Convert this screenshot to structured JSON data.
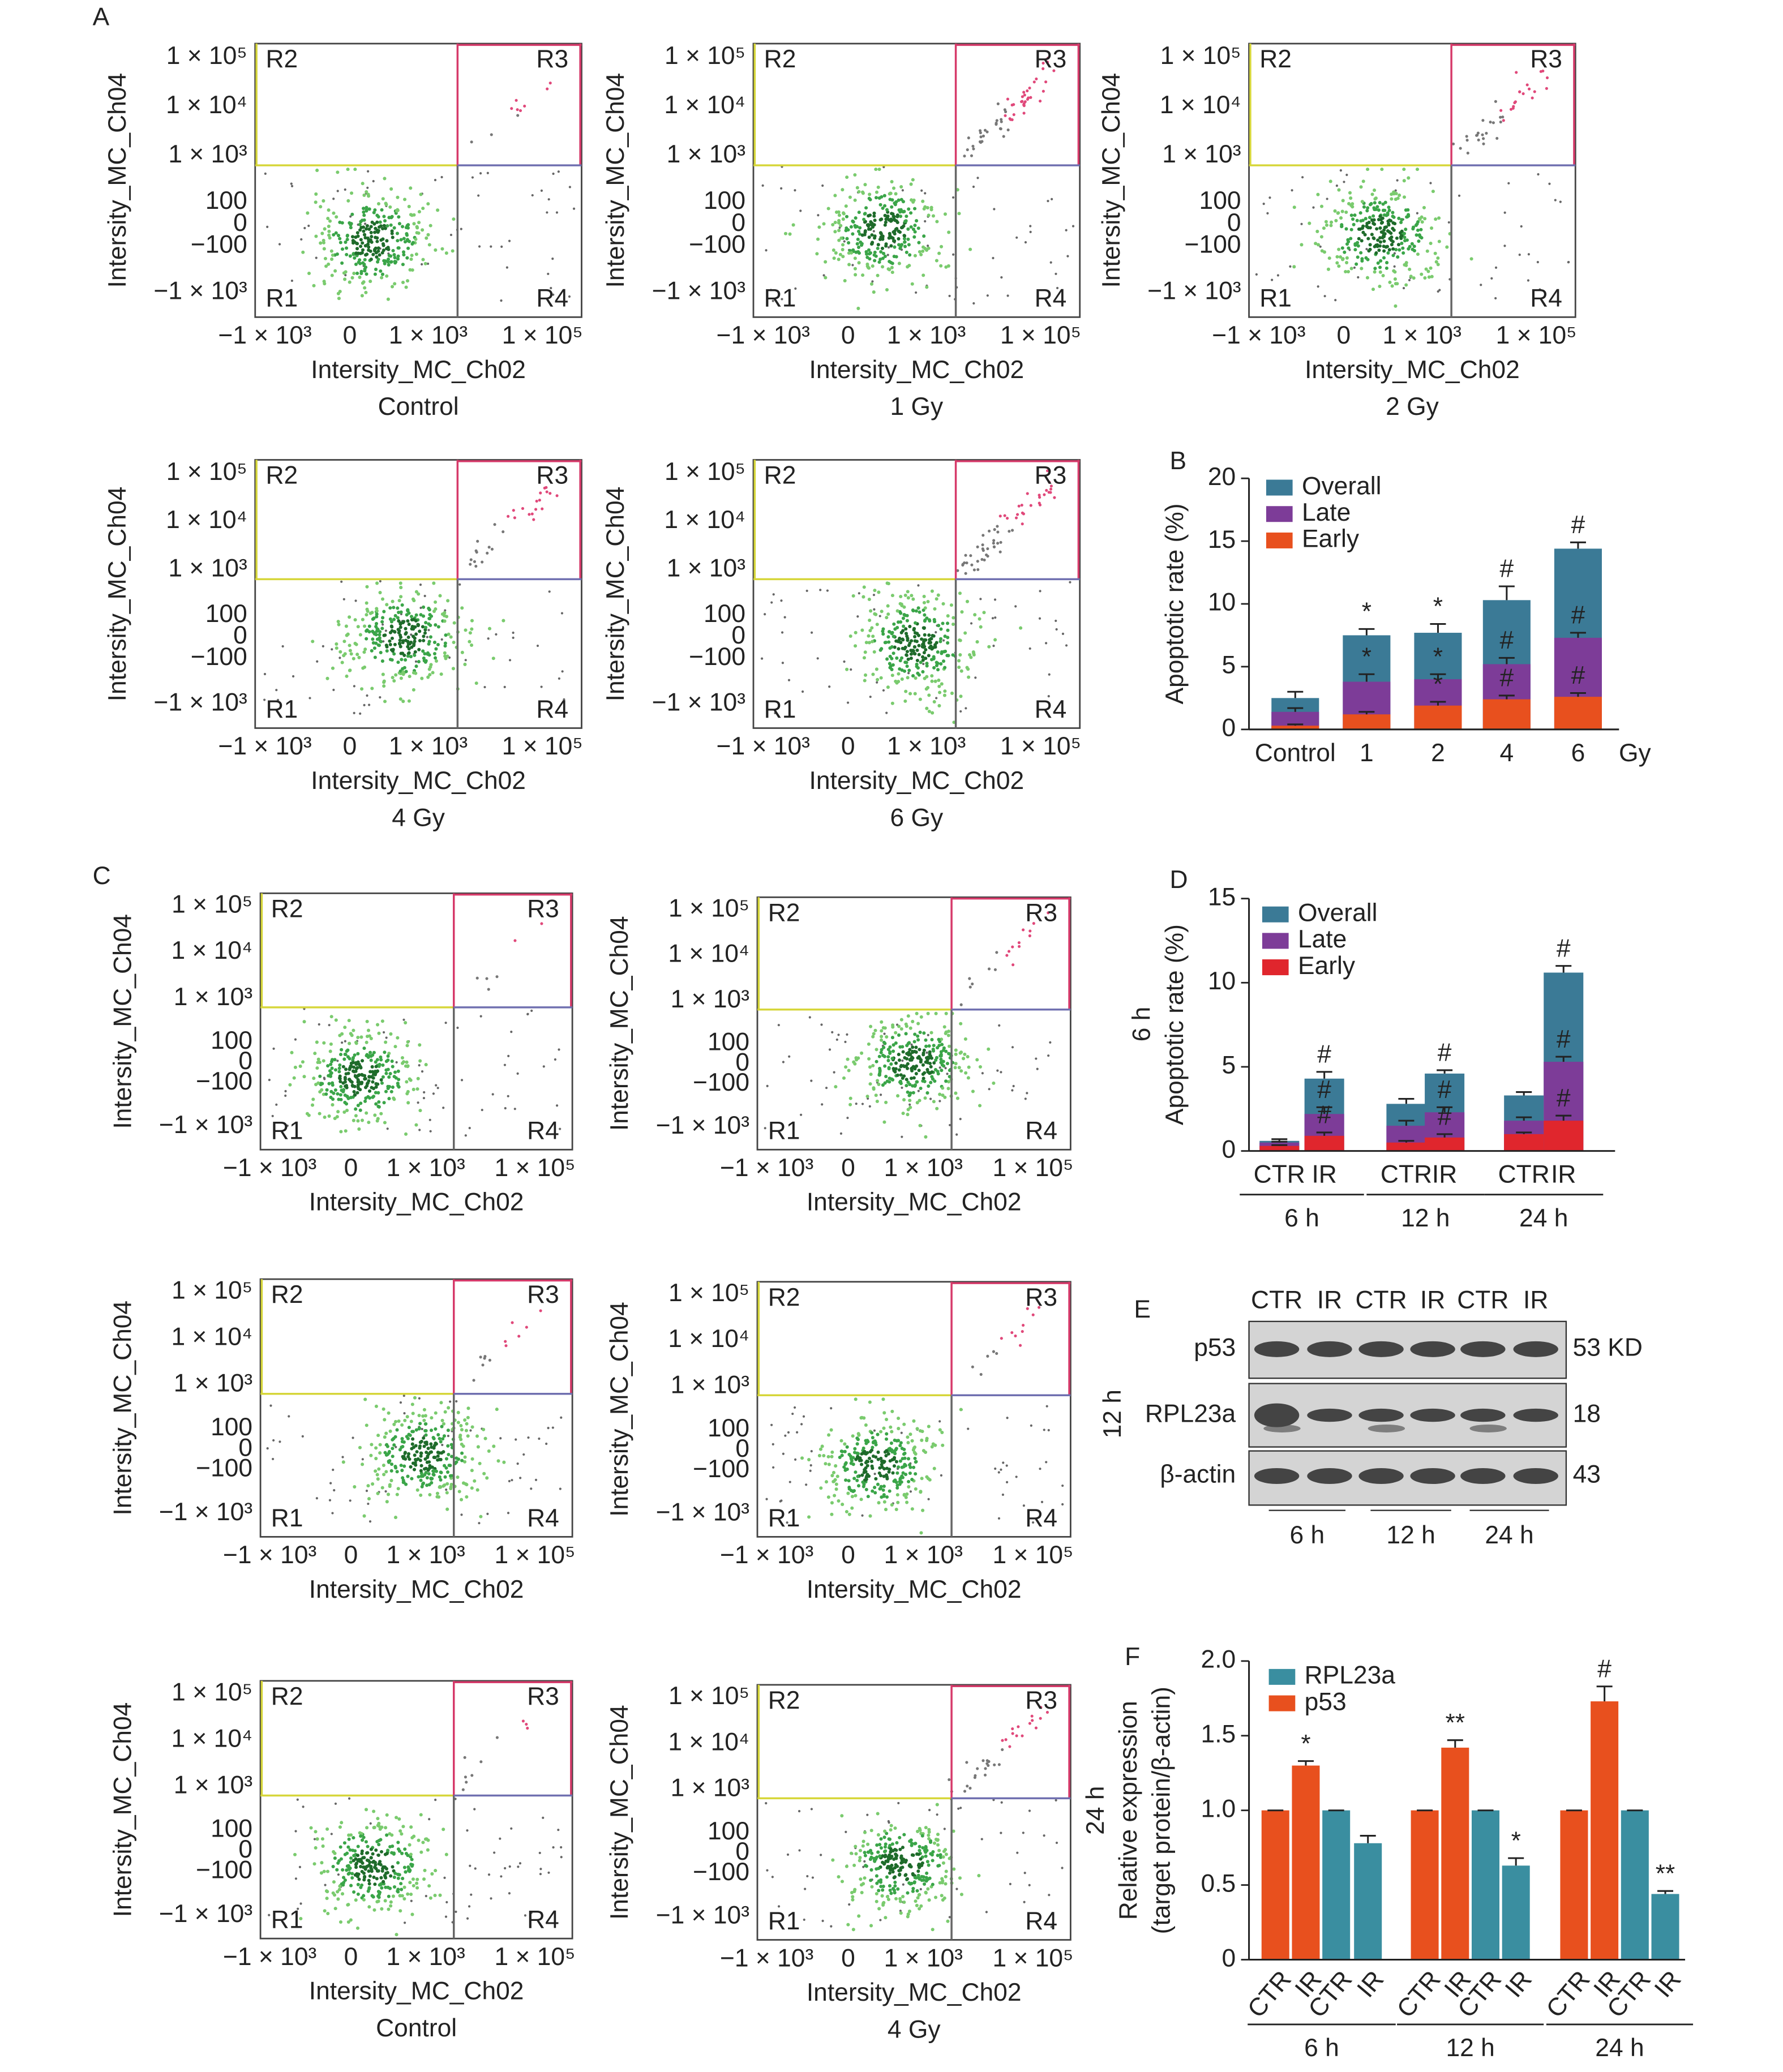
{
  "flow_plot": {
    "y_axis_title": "Intersity_MC_Ch04",
    "x_axis_title": "Intersity_MC_Ch02",
    "yticks": [
      "1 × 10⁵",
      "1 × 10⁴",
      "1 × 10³",
      "100",
      "0",
      "−100",
      "−1 × 10³"
    ],
    "xticks": [
      "−1 × 10³",
      "0",
      "1 × 10³",
      "1 × 10⁵"
    ],
    "regions": [
      "R1",
      "R2",
      "R3",
      "R4"
    ]
  },
  "panel_a": {
    "panel_label": "A",
    "captions": [
      "Control",
      "1 Gy",
      "2 Gy",
      "4 Gy",
      "6 Gy"
    ]
  },
  "panel_c": {
    "panel_label": "C",
    "row_labels": [
      "6 h",
      "12 h",
      "24 h"
    ],
    "captions": [
      "Control",
      "4 Gy"
    ]
  },
  "western_blot": {
    "panel_label": "E",
    "lanes": [
      "CTR",
      "IR",
      "CTR",
      "IR",
      "CTR",
      "IR"
    ],
    "proteins": [
      "p53",
      "RPL23a",
      "β-actin"
    ],
    "sizes": [
      "53 KD",
      "18",
      "43"
    ],
    "groups": [
      "6 h",
      "12 h",
      "24 h"
    ]
  },
  "chart_data": [
    {
      "type": "bar",
      "panel_label": "B",
      "ylabel": "Apoptotic rate (%)",
      "xlabel": "Gy",
      "categories": [
        "Control",
        "1",
        "2",
        "4",
        "6"
      ],
      "ylim": [
        0,
        20
      ],
      "yticks": [
        0,
        5,
        10,
        15,
        20
      ],
      "legend": "top-left",
      "series": [
        {
          "name": "Overall",
          "color": "#3b7a96",
          "values": [
            2.5,
            7.5,
            7.7,
            10.3,
            14.4
          ],
          "errors": [
            0.5,
            0.5,
            0.7,
            1.1,
            0.5
          ],
          "annotations": [
            null,
            "*",
            "*",
            "#",
            "#"
          ]
        },
        {
          "name": "Late",
          "color": "#7d3c98",
          "values": [
            1.4,
            3.8,
            4.0,
            5.2,
            7.3
          ],
          "errors": [
            0.3,
            0.6,
            0.4,
            0.5,
            0.4
          ],
          "annotations": [
            null,
            "*",
            "*",
            "#",
            "#"
          ]
        },
        {
          "name": "Early",
          "color": "#e8501e",
          "values": [
            0.3,
            1.2,
            1.9,
            2.4,
            2.6
          ],
          "errors": [
            0.1,
            0.2,
            0.3,
            0.3,
            0.3
          ],
          "annotations": [
            null,
            null,
            "*",
            "#",
            "#"
          ]
        }
      ]
    },
    {
      "type": "bar",
      "panel_label": "D",
      "ylabel": "Apoptotic rate (%)",
      "categories": [
        "CTR",
        "IR",
        "CTR",
        "IR",
        "CTR",
        "IR"
      ],
      "groups": [
        "6 h",
        "12 h",
        "24 h"
      ],
      "ylim": [
        0,
        15
      ],
      "yticks": [
        0,
        5,
        10,
        15
      ],
      "legend": "top-left",
      "series": [
        {
          "name": "Overall",
          "color": "#3b7a96",
          "values": [
            0.6,
            4.3,
            2.8,
            4.6,
            3.3,
            10.6
          ],
          "errors": [
            0.1,
            0.4,
            0.3,
            0.2,
            0.2,
            0.4
          ],
          "annotations": [
            null,
            "#",
            null,
            "#",
            null,
            "#"
          ]
        },
        {
          "name": "Late",
          "color": "#7d3c98",
          "values": [
            0.5,
            2.2,
            1.5,
            2.3,
            1.8,
            5.3
          ],
          "errors": [
            0.05,
            0.4,
            0.3,
            0.3,
            0.2,
            0.3
          ],
          "annotations": [
            null,
            "#",
            null,
            "#",
            null,
            "#"
          ]
        },
        {
          "name": "Early",
          "color": "#e0262d",
          "values": [
            0.3,
            0.9,
            0.5,
            0.8,
            1.0,
            1.8
          ],
          "errors": [
            0.05,
            0.2,
            0.1,
            0.2,
            0.1,
            0.3
          ],
          "annotations": [
            null,
            "#",
            null,
            "#",
            null,
            "#"
          ]
        }
      ]
    },
    {
      "type": "bar",
      "panel_label": "F",
      "ylabel": [
        "Relative expression",
        "(target protein/β-actin)"
      ],
      "categories": [
        "CTR",
        "IR",
        "CTR",
        "IR",
        "CTR",
        "IR",
        "CTR",
        "IR",
        "CTR",
        "IR",
        "CTR",
        "IR"
      ],
      "groups": [
        "6 h",
        "12 h",
        "24 h"
      ],
      "ylim": [
        0,
        2
      ],
      "yticks": [
        0,
        0.5,
        {
          "value": 1,
          "label": "1.0"
        },
        1.5,
        {
          "value": 2,
          "label": "2.0"
        }
      ],
      "legend": "top-left",
      "series": [
        {
          "name": "RPL23a",
          "color": "#3a8ea0",
          "values": [
            null,
            null,
            1.0,
            0.78,
            null,
            null,
            1.0,
            0.63,
            null,
            null,
            1.0,
            0.44
          ],
          "errors": [
            null,
            null,
            0.0,
            0.05,
            null,
            null,
            0.0,
            0.05,
            null,
            null,
            0.0,
            0.02
          ],
          "annotations": [
            null,
            null,
            null,
            null,
            null,
            null,
            null,
            "*",
            null,
            null,
            null,
            "**"
          ]
        },
        {
          "name": "p53",
          "color": "#e8501e",
          "values": [
            1.0,
            1.3,
            null,
            null,
            1.0,
            1.42,
            null,
            null,
            1.0,
            1.73,
            null,
            null
          ],
          "errors": [
            0.0,
            0.03,
            null,
            null,
            0.0,
            0.05,
            null,
            null,
            0.0,
            0.1,
            null,
            null
          ],
          "annotations": [
            null,
            "*",
            null,
            null,
            null,
            "**",
            null,
            null,
            null,
            "#",
            null,
            null
          ]
        }
      ]
    }
  ]
}
